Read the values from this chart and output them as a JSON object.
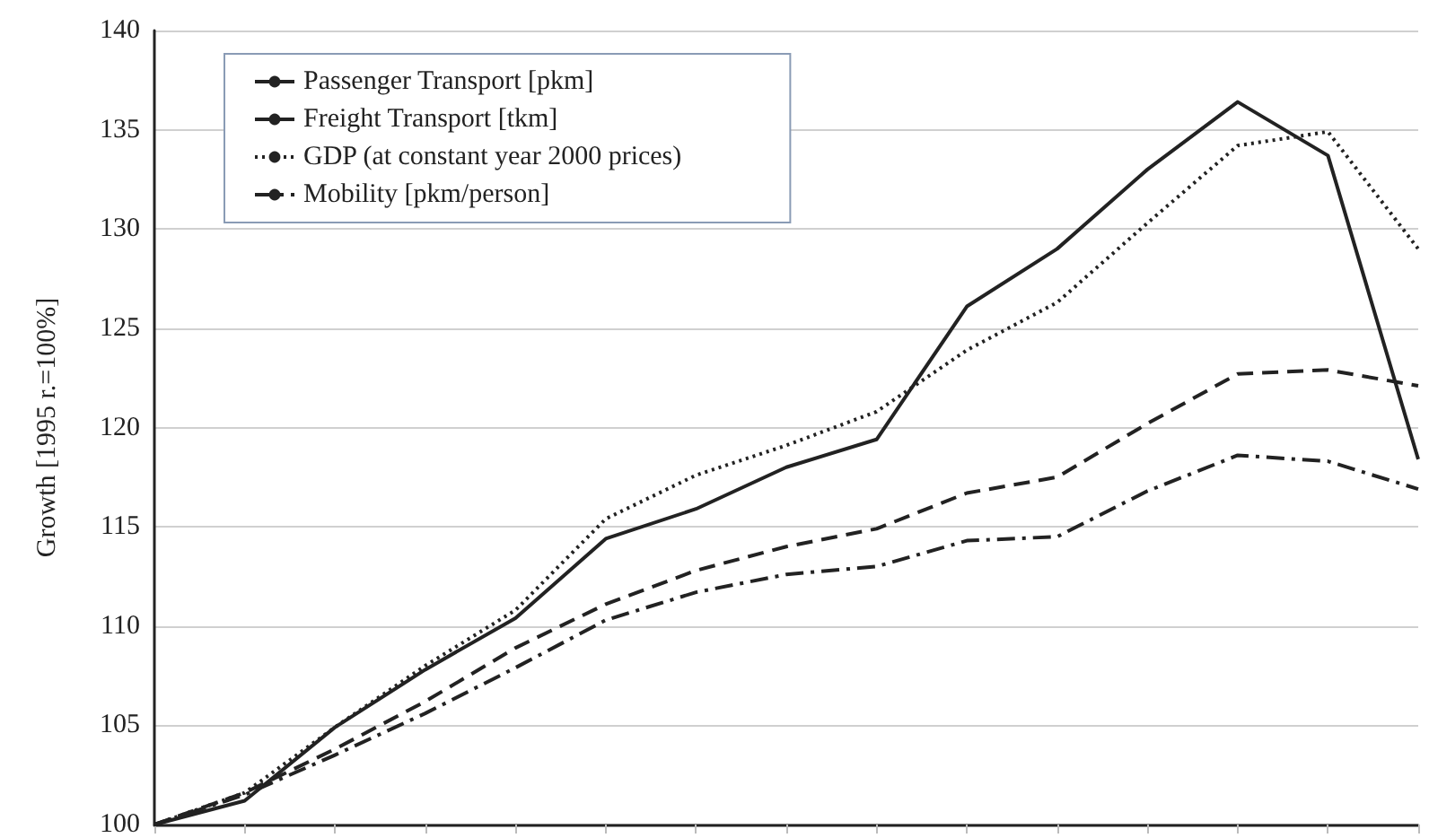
{
  "chart_data": {
    "type": "line",
    "ylabel": "Growth [1995 r.=100%]",
    "categories": [
      null,
      null,
      null,
      null,
      null,
      null,
      null,
      null,
      null,
      null,
      null,
      null,
      null,
      null,
      null
    ],
    "series": [
      {
        "name": "Passenger Transport [pkm]",
        "color": "#222222",
        "line_style": "dashed",
        "values": [
          100,
          101.6,
          103.8,
          106.2,
          108.9,
          111.1,
          112.8,
          114.0,
          114.9,
          116.7,
          117.5,
          120.2,
          122.7,
          122.9,
          122.1
        ]
      },
      {
        "name": "Freight Transport [tkm]",
        "color": "#222222",
        "line_style": "solid",
        "values": [
          100,
          101.2,
          104.9,
          107.8,
          110.4,
          114.4,
          115.9,
          118.0,
          119.4,
          126.1,
          129.0,
          133.0,
          136.4,
          133.7,
          118.4
        ]
      },
      {
        "name": "GDP (at constant year 2000 prices)",
        "color": "#222222",
        "line_style": "dotted",
        "values": [
          100,
          101.6,
          104.9,
          108.0,
          110.8,
          115.4,
          117.6,
          119.1,
          120.8,
          123.9,
          126.3,
          130.3,
          134.2,
          134.9,
          129.0
        ]
      },
      {
        "name": "Mobility [pkm/person]",
        "color": "#222222",
        "line_style": "dashdot",
        "values": [
          100,
          101.5,
          103.5,
          105.6,
          107.9,
          110.3,
          111.7,
          112.6,
          113.0,
          114.3,
          114.5,
          116.8,
          118.6,
          118.3,
          116.9
        ]
      }
    ],
    "ylim": [
      100,
      140
    ],
    "yticks": [
      100,
      105,
      110,
      115,
      120,
      125,
      130,
      135,
      140
    ],
    "grid": "y",
    "legend": "top left",
    "marker": "none",
    "tick_labels": "y"
  }
}
